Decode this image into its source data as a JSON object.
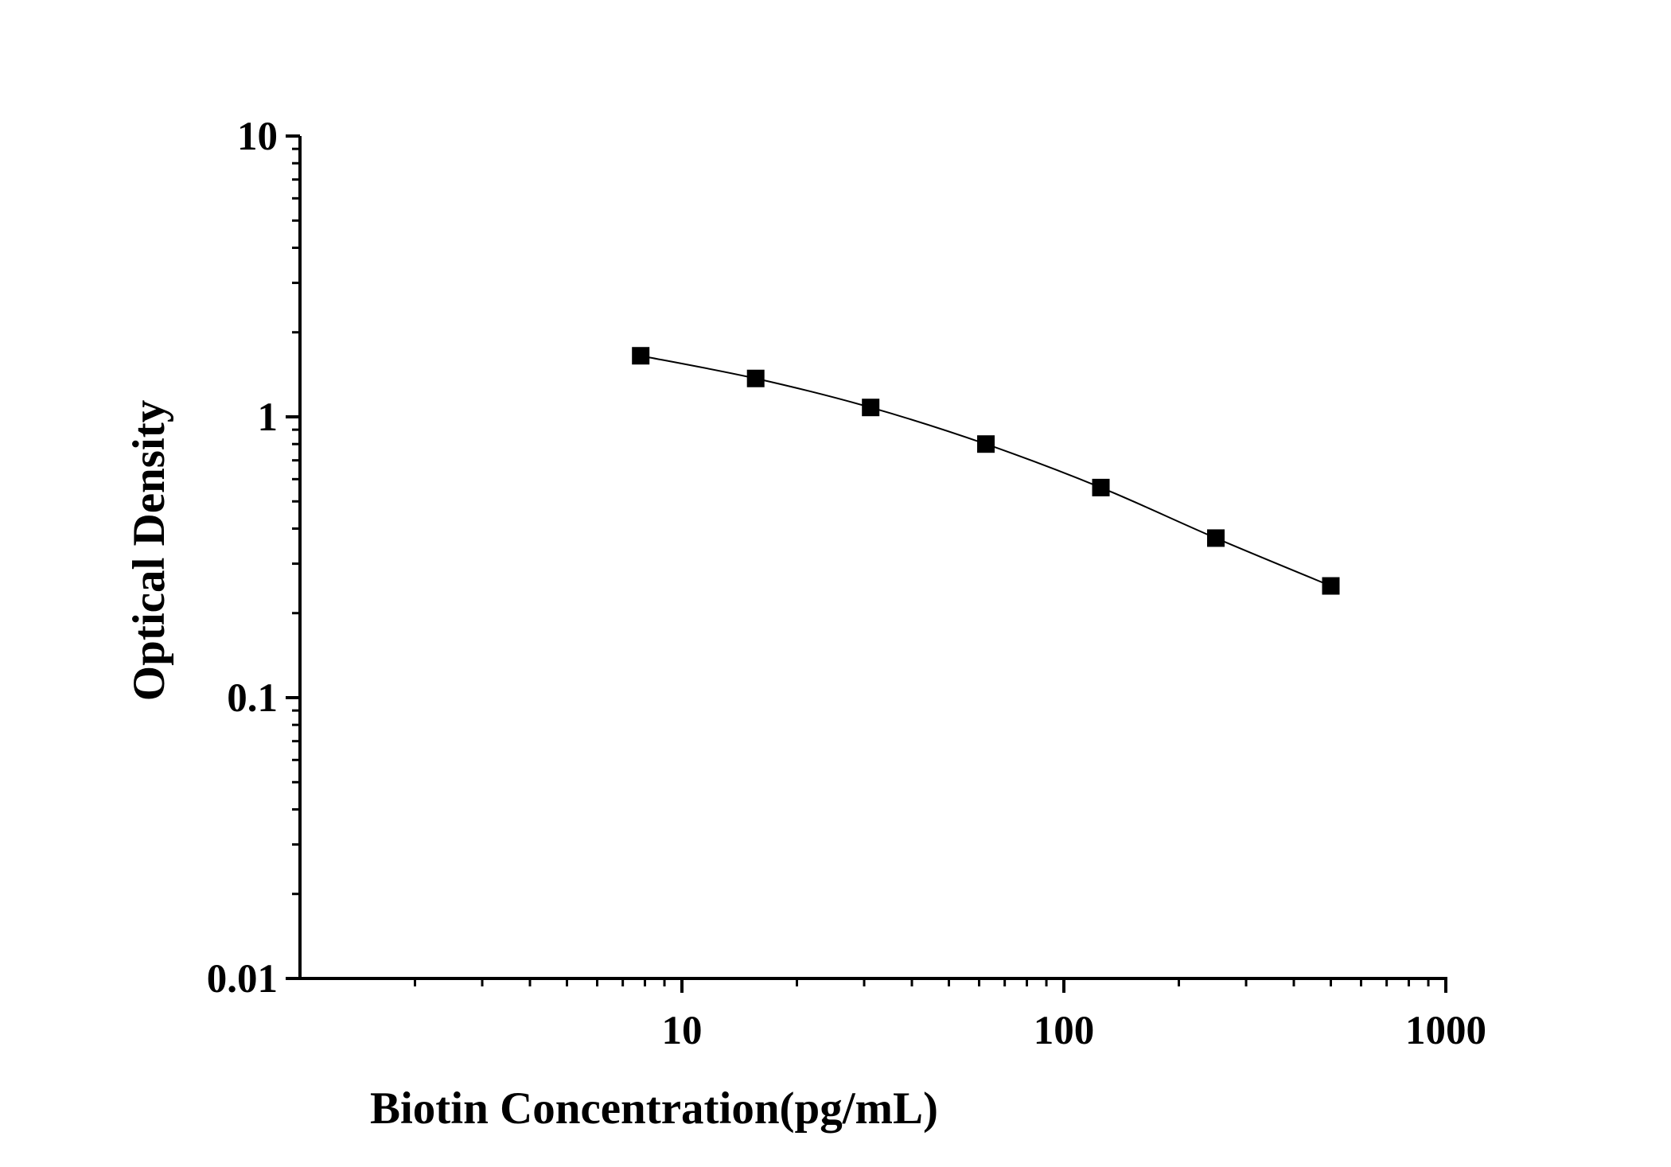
{
  "chart_data": {
    "type": "scatter",
    "title": "",
    "xlabel": "Biotin Concentration(pg/mL)",
    "ylabel": "Optical Density",
    "x_scale": "log",
    "y_scale": "log",
    "xlim": [
      1,
      1000
    ],
    "ylim": [
      0.01,
      10
    ],
    "x_ticks": [
      {
        "value": 10,
        "label": "10"
      },
      {
        "value": 100,
        "label": "100"
      },
      {
        "value": 1000,
        "label": "1000"
      }
    ],
    "y_ticks": [
      {
        "value": 0.01,
        "label": "0.01"
      },
      {
        "value": 0.1,
        "label": "0.1"
      },
      {
        "value": 1,
        "label": "1"
      },
      {
        "value": 10,
        "label": "10"
      }
    ],
    "grid": false,
    "legend": "none",
    "series": [
      {
        "marker": "square",
        "line": "smooth",
        "color": "#000000",
        "points": [
          {
            "x": 7.8,
            "y": 1.65
          },
          {
            "x": 15.6,
            "y": 1.37
          },
          {
            "x": 31.2,
            "y": 1.08
          },
          {
            "x": 62.5,
            "y": 0.8
          },
          {
            "x": 125,
            "y": 0.56
          },
          {
            "x": 250,
            "y": 0.37
          },
          {
            "x": 500,
            "y": 0.25
          }
        ]
      }
    ]
  }
}
